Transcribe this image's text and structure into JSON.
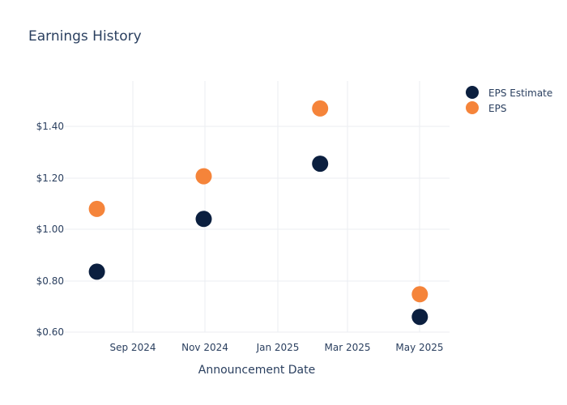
{
  "chart_data": {
    "type": "scatter",
    "title": "Earnings History",
    "xlabel": "Announcement Date",
    "ylabel": "",
    "x_ticks": [
      "Sep 2024",
      "Nov 2024",
      "Jan 2025",
      "Mar 2025",
      "May 2025"
    ],
    "y_ticks": [
      "$0.60",
      "$0.80",
      "$1.00",
      "$1.20",
      "$1.40"
    ],
    "ylim": [
      0.58,
      1.58
    ],
    "xlim": [
      "2024-07-05",
      "2025-05-25"
    ],
    "grid": true,
    "legend_position": "top-right",
    "series": [
      {
        "name": "EPS Estimate",
        "color": "#0b1f3f",
        "points": [
          {
            "x": "2024-08-01",
            "y": 0.84
          },
          {
            "x": "2024-10-30",
            "y": 1.05
          },
          {
            "x": "2025-02-05",
            "y": 1.27
          },
          {
            "x": "2025-04-30",
            "y": 0.66
          }
        ]
      },
      {
        "name": "EPS",
        "color": "#f5843a",
        "points": [
          {
            "x": "2024-08-01",
            "y": 1.09
          },
          {
            "x": "2024-10-30",
            "y": 1.22
          },
          {
            "x": "2025-02-05",
            "y": 1.49
          },
          {
            "x": "2025-04-30",
            "y": 0.75
          }
        ]
      }
    ]
  }
}
